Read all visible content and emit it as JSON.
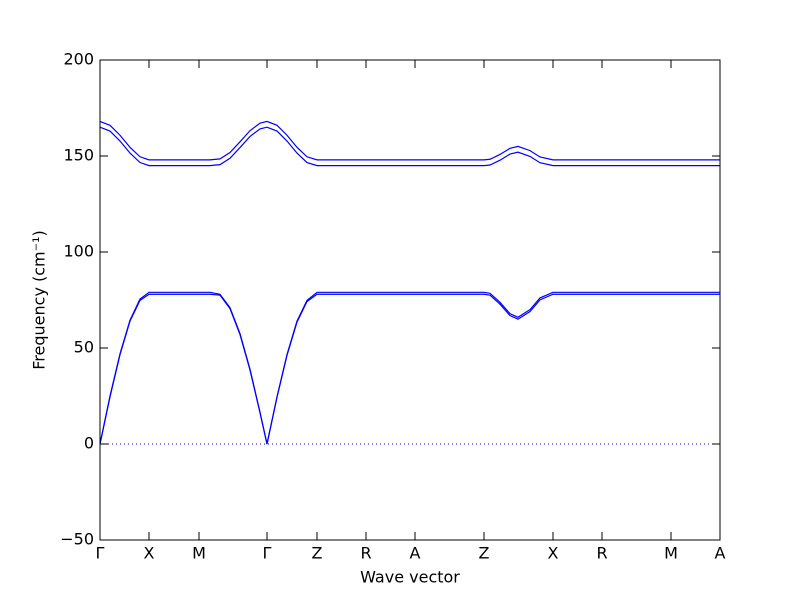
{
  "chart_data": {
    "type": "line",
    "xlabel": "Wave vector",
    "ylabel": "Frequency (cm⁻¹)",
    "x": [
      0,
      0.1,
      0.2,
      0.3,
      0.4,
      0.49,
      0.99,
      1.1,
      1.2,
      1.3,
      1.4,
      1.5,
      1.6,
      1.67,
      1.77,
      1.87,
      1.97,
      2.07,
      2.17,
      2.66,
      3.15,
      3.84,
      3.9,
      4.0,
      4.1,
      4.18,
      4.3,
      4.4,
      4.53,
      5.02,
      5.71,
      6.2
    ],
    "series": [
      {
        "color": "#0000ff",
        "values": [
          0,
          25,
          47,
          64.5,
          75.5,
          79,
          79,
          79,
          78,
          71,
          57.5,
          39,
          16.5,
          0,
          24.6,
          46.6,
          64,
          74.8,
          79,
          79,
          79,
          79,
          78.5,
          73.8,
          67.9,
          66,
          70,
          76.1,
          79,
          79,
          79,
          79
        ]
      },
      {
        "color": "#0000ff",
        "values": [
          0,
          24.5,
          46.5,
          64,
          74.8,
          78,
          78,
          78,
          77.5,
          70.5,
          57,
          38.5,
          16.3,
          0,
          24.3,
          46.2,
          63.5,
          74.2,
          78,
          78,
          78,
          78,
          77.5,
          72.8,
          66.9,
          65,
          69,
          75.1,
          78,
          78,
          78,
          78
        ]
      },
      {
        "color": "#0000ff",
        "values": [
          168,
          166,
          160.8,
          154.5,
          149.6,
          148,
          148,
          148,
          148.5,
          151.8,
          157.4,
          163.2,
          167.1,
          168,
          166,
          160.8,
          154.5,
          149.6,
          148,
          148,
          148,
          148,
          148.3,
          150.8,
          154,
          155,
          152.8,
          149.5,
          148,
          148,
          148,
          148
        ]
      },
      {
        "color": "#0000ff",
        "values": [
          165,
          163,
          157.8,
          151.5,
          146.6,
          145,
          145,
          145,
          145.5,
          148.8,
          154.4,
          160.2,
          164.1,
          165,
          163,
          157.8,
          151.5,
          146.6,
          145,
          145,
          145,
          145,
          145.3,
          147.8,
          151,
          152,
          149.8,
          146.5,
          145,
          145,
          145,
          145
        ]
      }
    ],
    "xlim": [
      0,
      6.2
    ],
    "xticks": [
      {
        "value": 0,
        "label": "Γ"
      },
      {
        "value": 0.49,
        "label": "X"
      },
      {
        "value": 0.99,
        "label": "M"
      },
      {
        "value": 1.67,
        "label": "Γ"
      },
      {
        "value": 2.17,
        "label": "Z"
      },
      {
        "value": 2.66,
        "label": "R"
      },
      {
        "value": 3.15,
        "label": "A"
      },
      {
        "value": 3.84,
        "label": "Z"
      },
      {
        "value": 4.53,
        "label": "X"
      },
      {
        "value": 5.02,
        "label": "R"
      },
      {
        "value": 5.71,
        "label": "M"
      },
      {
        "value": 6.2,
        "label": "A"
      }
    ],
    "ylim": [
      -50,
      200
    ],
    "yticks": [
      {
        "value": -50,
        "label": "−50"
      },
      0,
      50,
      100,
      150,
      200
    ],
    "axhline": 0
  }
}
